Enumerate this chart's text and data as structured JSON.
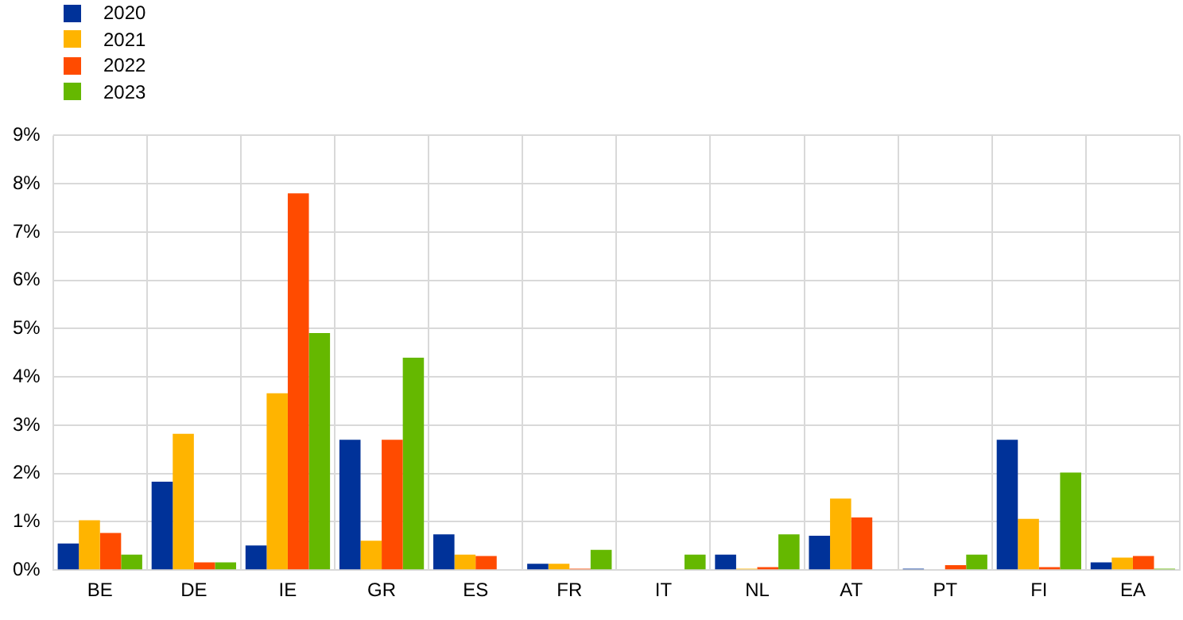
{
  "chart_data": {
    "type": "bar",
    "categories": [
      "BE",
      "DE",
      "IE",
      "GR",
      "ES",
      "FR",
      "IT",
      "NL",
      "AT",
      "PT",
      "FI",
      "EA"
    ],
    "series": [
      {
        "name": "2020",
        "color": "#003299",
        "values": [
          0.55,
          1.83,
          0.51,
          2.7,
          0.74,
          0.13,
          0,
          0.32,
          0.71,
          0.03,
          2.7,
          0.16
        ]
      },
      {
        "name": "2021",
        "color": "#ffb400",
        "values": [
          1.03,
          2.82,
          3.66,
          0.61,
          0.32,
          0.13,
          0,
          0.03,
          1.48,
          0,
          1.06,
          0.26
        ]
      },
      {
        "name": "2022",
        "color": "#ff4b00",
        "values": [
          0.77,
          0.16,
          7.8,
          2.7,
          0.29,
          0.03,
          0,
          0.06,
          1.09,
          0.1,
          0.06,
          0.29
        ]
      },
      {
        "name": "2023",
        "color": "#65b800",
        "values": [
          0.32,
          0.16,
          4.91,
          4.4,
          0,
          0.42,
          0.32,
          0.74,
          0,
          0.32,
          2.02,
          0.03
        ]
      }
    ],
    "ylim": [
      0,
      9
    ],
    "yticks": [
      {
        "value": 0,
        "label": "0%"
      },
      {
        "value": 1,
        "label": "1%"
      },
      {
        "value": 2,
        "label": "2%"
      },
      {
        "value": 3,
        "label": "3%"
      },
      {
        "value": 4,
        "label": "4%"
      },
      {
        "value": 5,
        "label": "5%"
      },
      {
        "value": 6,
        "label": "6%"
      },
      {
        "value": 7,
        "label": "7%"
      },
      {
        "value": 8,
        "label": "8%"
      },
      {
        "value": 9,
        "label": "9%"
      }
    ],
    "grid": true,
    "legend": "top left"
  }
}
